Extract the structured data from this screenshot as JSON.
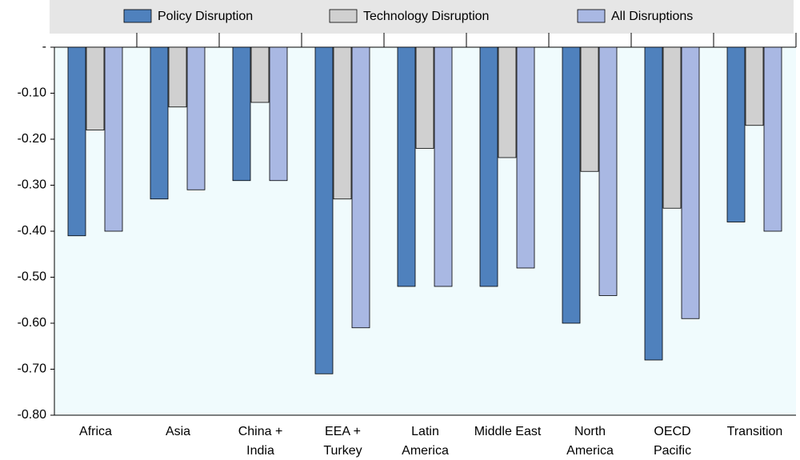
{
  "chart_data": {
    "type": "bar",
    "categories": [
      "Africa",
      "Asia",
      "China +\nIndia",
      "EEA +\nTurkey",
      "Latin\nAmerica",
      "Middle East",
      "North\nAmerica",
      "OECD\nPacific",
      "Transition"
    ],
    "series": [
      {
        "name": "Policy Disruption",
        "color": "#4f81bd",
        "values": [
          -0.41,
          -0.33,
          -0.29,
          -0.71,
          -0.52,
          -0.52,
          -0.6,
          -0.68,
          -0.38
        ]
      },
      {
        "name": "Technology Disruption",
        "color": "#d0d0d0",
        "values": [
          -0.18,
          -0.13,
          -0.12,
          -0.33,
          -0.22,
          -0.24,
          -0.27,
          -0.35,
          -0.17
        ]
      },
      {
        "name": "All Disruptions",
        "color": "#a9b8e3",
        "values": [
          -0.4,
          -0.31,
          -0.29,
          -0.61,
          -0.52,
          -0.48,
          -0.54,
          -0.59,
          -0.4
        ]
      }
    ],
    "ylim": [
      -0.8,
      0
    ],
    "yticks": [
      {
        "value": 0,
        "label": "-"
      },
      {
        "value": -0.1,
        "label": "-0.10"
      },
      {
        "value": -0.2,
        "label": "-0.20"
      },
      {
        "value": -0.3,
        "label": "-0.30"
      },
      {
        "value": -0.4,
        "label": "-0.40"
      },
      {
        "value": -0.5,
        "label": "-0.50"
      },
      {
        "value": -0.6,
        "label": "-0.60"
      },
      {
        "value": -0.7,
        "label": "-0.70"
      },
      {
        "value": -0.8,
        "label": "-0.80"
      }
    ]
  }
}
